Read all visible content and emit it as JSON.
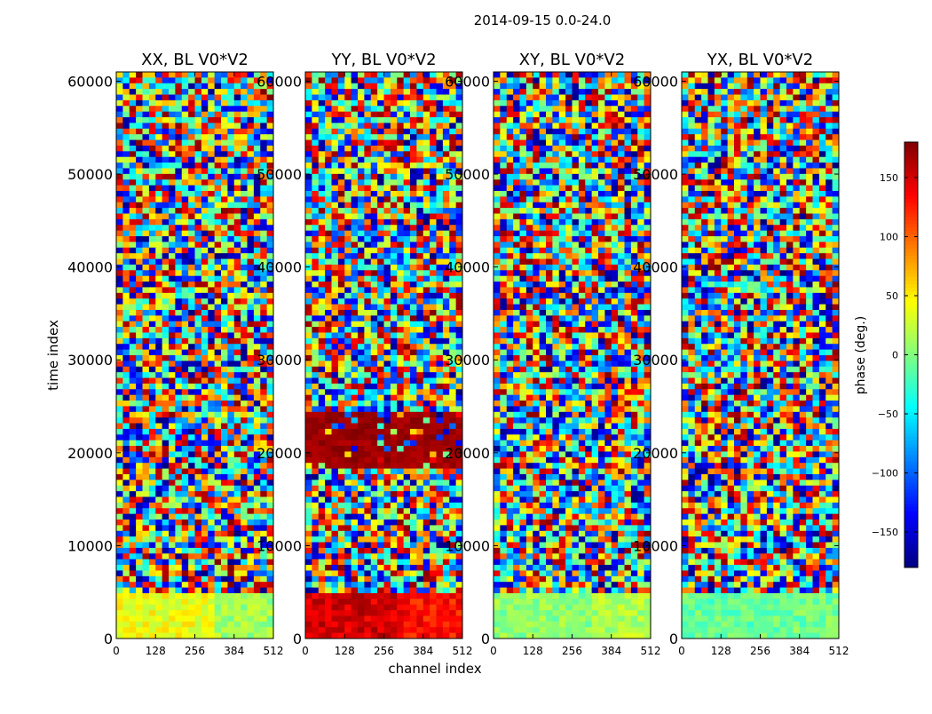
{
  "chart_data": {
    "type": "heatmap",
    "title": "2014-09-15 0.0-24.0",
    "xlabel": "channel index",
    "ylabel": "time index",
    "xlim": [
      0,
      512
    ],
    "ylim": [
      0,
      61000
    ],
    "x_ticks": [
      0,
      128,
      256,
      384,
      512
    ],
    "y_ticks": [
      0,
      10000,
      20000,
      30000,
      40000,
      50000,
      60000
    ],
    "panels": [
      {
        "title": "XX, BL V0*V2",
        "low_band_phase": 40,
        "upper_band_phase": 10,
        "red_rows": false
      },
      {
        "title": "YY, BL V0*V2",
        "low_band_phase": 150,
        "upper_band_phase": 130,
        "red_rows": true
      },
      {
        "title": "XY, BL V0*V2",
        "low_band_phase": 5,
        "upper_band_phase": 15,
        "red_rows": false
      },
      {
        "title": "YX, BL V0*V2",
        "low_band_phase": -10,
        "upper_band_phase": -5,
        "red_rows": false
      }
    ],
    "colorbar": {
      "label": "phase (deg.)",
      "range": [
        -180,
        180
      ],
      "ticks": [
        -150,
        -100,
        -50,
        0,
        50,
        100,
        150
      ],
      "colormap": "jet"
    }
  }
}
